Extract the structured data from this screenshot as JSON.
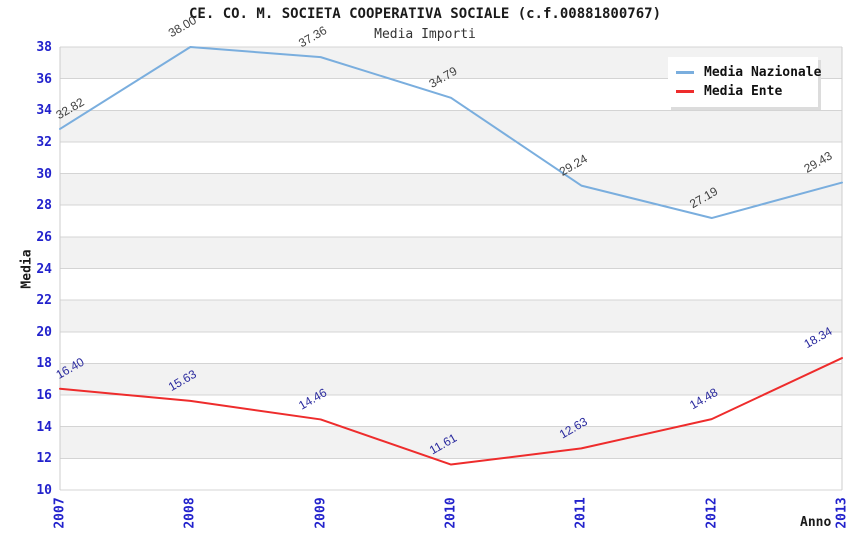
{
  "header": {
    "title": "CE. CO. M. SOCIETA COOPERATIVA SOCIALE (c.f.00881800767)",
    "subtitle": "Media Importi"
  },
  "chart_data": {
    "type": "line",
    "title": "CE. CO. M. SOCIETA COOPERATIVA SOCIALE (c.f.00881800767)",
    "subtitle": "Media Importi",
    "x": [
      2007,
      2008,
      2009,
      2010,
      2011,
      2012,
      2013
    ],
    "series": [
      {
        "name": "Media Nazionale",
        "values": [
          32.82,
          38.0,
          37.36,
          34.79,
          29.24,
          27.19,
          29.43
        ],
        "color": "#7aaede",
        "label_color": "#3f3f3f"
      },
      {
        "name": "Media Ente",
        "values": [
          16.4,
          15.63,
          14.46,
          11.61,
          12.63,
          14.48,
          18.34
        ],
        "color": "#ee2c2c",
        "label_color": "#2a2a9e"
      }
    ],
    "xlabel": "Anno",
    "ylabel": "Media",
    "ylim": [
      10,
      38
    ],
    "ytick_step": 2,
    "grid": true,
    "legend_position": "top-right",
    "band_colors": [
      "#f2f2f2",
      "#ffffff"
    ],
    "gridline_color": "#d4d4d4",
    "plot_border_color": "#cccccc",
    "tick_label_color": "#2222cc"
  }
}
